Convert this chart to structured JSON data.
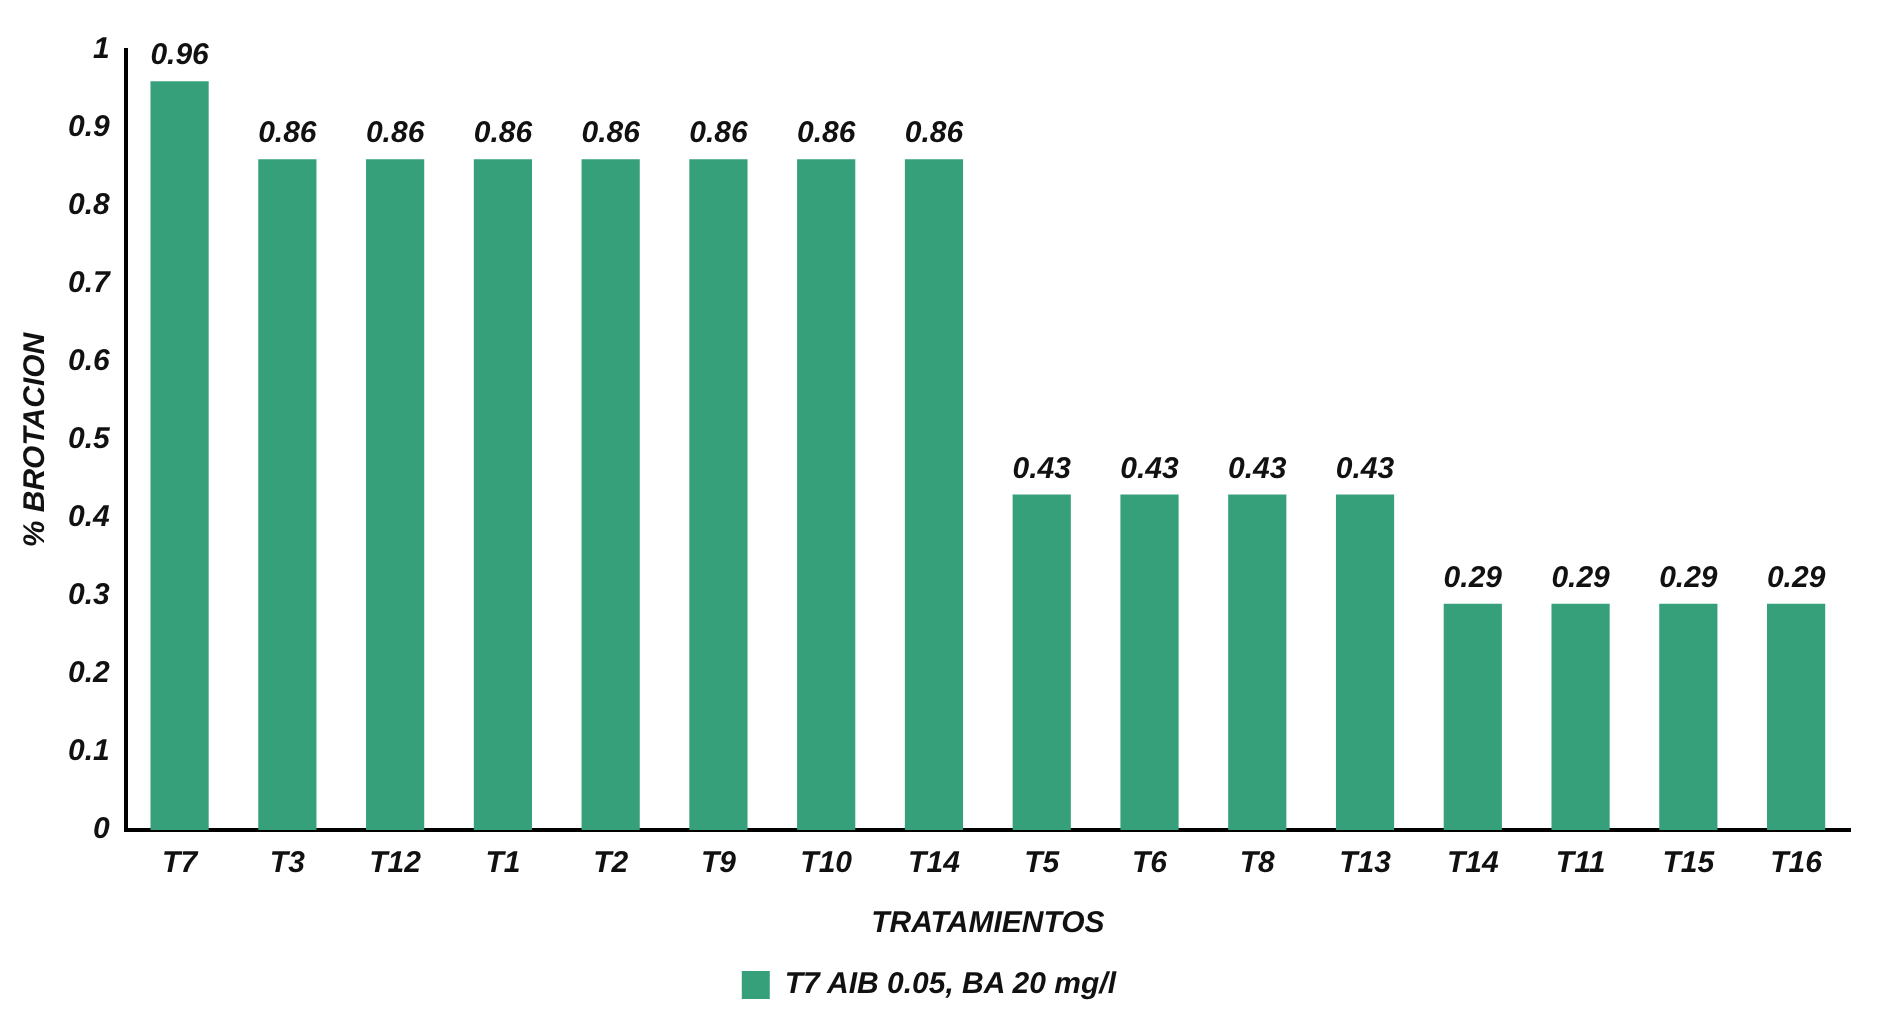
{
  "chart_data": {
    "type": "bar",
    "xlabel": "TRATAMIENTOS",
    "ylabel": "% BROTACION",
    "categories": [
      "T7",
      "T3",
      "T12",
      "T1",
      "T2",
      "T9",
      "T10",
      "T14",
      "T5",
      "T6",
      "T8",
      "T13",
      "T14",
      "T11",
      "T15",
      "T16"
    ],
    "series": [
      {
        "name": "T7 AIB 0.05, BA 20 mg/l",
        "color": "#35a07a",
        "values": [
          0.96,
          0.86,
          0.86,
          0.86,
          0.86,
          0.86,
          0.86,
          0.86,
          0.43,
          0.43,
          0.43,
          0.43,
          0.29,
          0.29,
          0.29,
          0.29
        ]
      }
    ],
    "ylim": [
      0,
      1
    ],
    "yticks": [
      0,
      0.1,
      0.2,
      0.3,
      0.4,
      0.5,
      0.6,
      0.7,
      0.8,
      0.9,
      1
    ],
    "grid": false,
    "legend": "bottom",
    "data_labels": true
  }
}
